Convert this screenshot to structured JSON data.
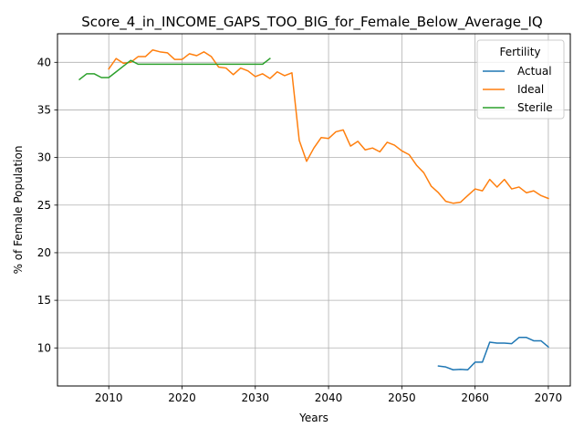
{
  "chart_data": {
    "type": "line",
    "title": "Score_4_in_INCOME_GAPS_TOO_BIG_for_Female_Below_Average_IQ",
    "xlabel": "Years",
    "ylabel": "% of Female Population",
    "xlim": [
      2003,
      2073
    ],
    "ylim": [
      6.0,
      43.0
    ],
    "xticks": [
      2010,
      2020,
      2030,
      2040,
      2050,
      2060,
      2070
    ],
    "yticks": [
      10,
      15,
      20,
      25,
      30,
      35,
      40
    ],
    "grid": true,
    "legend": {
      "title": "Fertility",
      "placement": "top-right"
    },
    "series": [
      {
        "name": "Actual",
        "color": "#1f77b4",
        "x": [
          2055,
          2056,
          2057,
          2058,
          2059,
          2060,
          2061,
          2062,
          2063,
          2064,
          2065,
          2066,
          2067,
          2068,
          2069,
          2070
        ],
        "y": [
          8.1,
          8.0,
          7.7,
          7.75,
          7.7,
          8.5,
          8.5,
          10.6,
          10.5,
          10.5,
          10.45,
          11.1,
          11.1,
          10.75,
          10.75,
          10.1
        ]
      },
      {
        "name": "Ideal",
        "color": "#ff7f0e",
        "x": [
          2010,
          2011,
          2012,
          2013,
          2014,
          2015,
          2016,
          2017,
          2018,
          2019,
          2020,
          2021,
          2022,
          2023,
          2024,
          2025,
          2026,
          2027,
          2028,
          2029,
          2030,
          2031,
          2032,
          2033,
          2034,
          2035,
          2036,
          2037,
          2038,
          2039,
          2040,
          2041,
          2042,
          2043,
          2044,
          2045,
          2046,
          2047,
          2048,
          2049,
          2050,
          2051,
          2052,
          2053,
          2054,
          2055,
          2056,
          2057,
          2058,
          2059,
          2060,
          2061,
          2062,
          2063,
          2064,
          2065,
          2066,
          2067,
          2068,
          2069,
          2070
        ],
        "y": [
          39.3,
          40.4,
          39.9,
          40.0,
          40.6,
          40.6,
          41.3,
          41.1,
          41.0,
          40.3,
          40.3,
          40.9,
          40.7,
          41.1,
          40.6,
          39.5,
          39.4,
          38.7,
          39.4,
          39.1,
          38.5,
          38.8,
          38.3,
          39.0,
          38.6,
          38.9,
          31.8,
          29.6,
          31.0,
          32.1,
          32.0,
          32.7,
          32.9,
          31.2,
          31.7,
          30.8,
          31.0,
          30.6,
          31.6,
          31.3,
          30.7,
          30.3,
          29.2,
          28.4,
          27.0,
          26.3,
          25.4,
          25.2,
          25.3,
          26.0,
          26.7,
          26.5,
          27.7,
          26.9,
          27.7,
          26.7,
          26.9,
          26.3,
          26.5,
          26.0,
          25.7
        ]
      },
      {
        "name": "Sterile",
        "color": "#2ca02c",
        "x": [
          2006,
          2007,
          2008,
          2009,
          2010,
          2011,
          2012,
          2013,
          2014,
          2015,
          2016,
          2017,
          2018,
          2019,
          2020,
          2021,
          2022,
          2023,
          2024,
          2025,
          2026,
          2027,
          2028,
          2029,
          2030,
          2031,
          2032
        ],
        "y": [
          38.2,
          38.8,
          38.8,
          38.4,
          38.4,
          39.0,
          39.6,
          40.2,
          39.8,
          39.8,
          39.8,
          39.8,
          39.8,
          39.8,
          39.8,
          39.8,
          39.8,
          39.8,
          39.8,
          39.8,
          39.8,
          39.8,
          39.8,
          39.8,
          39.8,
          39.8,
          40.4
        ]
      }
    ]
  }
}
